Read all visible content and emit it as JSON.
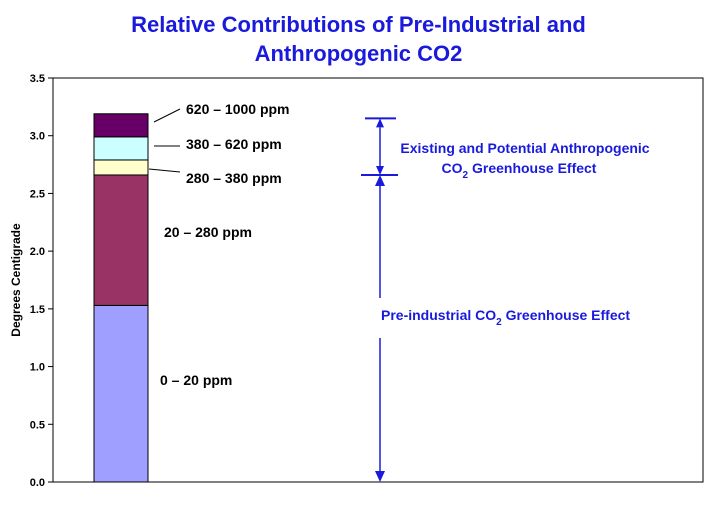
{
  "title_lines": [
    "Relative Contributions of Pre-Industrial and",
    "Anthropogenic CO2"
  ],
  "chart_data": {
    "type": "bar",
    "stacked": true,
    "ylabel": "Degrees Centigrade",
    "xlabel": "",
    "ylim": [
      0,
      3.5
    ],
    "yticks": [
      "0.0",
      "0.5",
      "1.0",
      "1.5",
      "2.0",
      "2.5",
      "3.0",
      "3.5"
    ],
    "grid": false,
    "segments": [
      {
        "label": "0 – 20 ppm",
        "start": 0.0,
        "end": 1.53,
        "color": "#9f9fff"
      },
      {
        "label": "20 – 280 ppm",
        "start": 1.53,
        "end": 2.66,
        "color": "#993366"
      },
      {
        "label": "280 – 380 ppm",
        "start": 2.66,
        "end": 2.79,
        "color": "#ffffcc"
      },
      {
        "label": "380 – 620 ppm",
        "start": 2.79,
        "end": 2.99,
        "color": "#ccffff"
      },
      {
        "label": "620 – 1000 ppm",
        "start": 2.99,
        "end": 3.19,
        "color": "#660066"
      }
    ],
    "annotations": [
      {
        "text_main": "Pre-industrial CO",
        "text_sub": "2",
        "text_tail": " Greenhouse Effect",
        "from": 0.0,
        "to": 2.66
      },
      {
        "line1": "Existing and Potential Anthropogenic",
        "text_main": "CO",
        "text_sub": "2",
        "text_tail": " Greenhouse Effect",
        "from": 2.66,
        "to": 3.15
      }
    ],
    "annotation_color": "#1a1adc"
  }
}
